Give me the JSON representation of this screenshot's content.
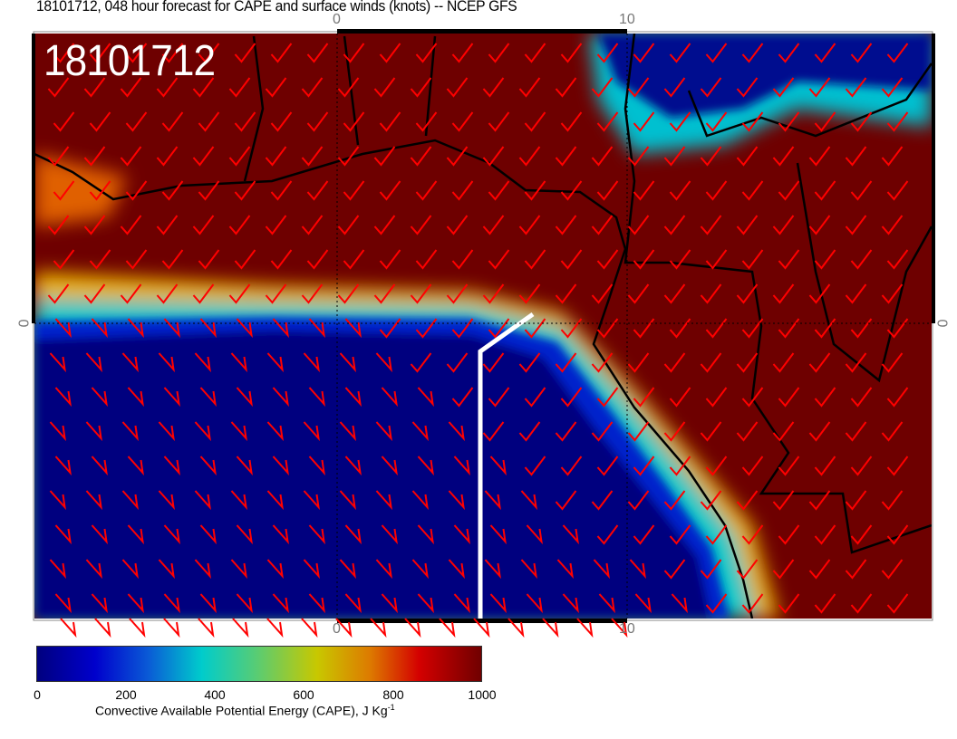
{
  "header": {
    "title": "18101712, 048 hour forecast for CAPE and surface winds (knots) -- NCEP GFS"
  },
  "map": {
    "timestamp_label": "18101712",
    "axis_labels": {
      "top": [
        "0",
        "10"
      ],
      "bottom": [
        "0",
        "10"
      ],
      "left": "0",
      "right": "0"
    },
    "colors": {
      "high_cape": "#6e0000",
      "low_cape": "#00007f",
      "wind_barbs": "#ff0000",
      "coastline": "#000000",
      "track": "#ffffff"
    }
  },
  "colorbar": {
    "ticks": [
      "0",
      "200",
      "400",
      "600",
      "800",
      "1000"
    ],
    "range": [
      0,
      1000
    ],
    "label": "Convective Available Potential Energy (CAPE), J Kg",
    "label_sup": "-1"
  }
}
